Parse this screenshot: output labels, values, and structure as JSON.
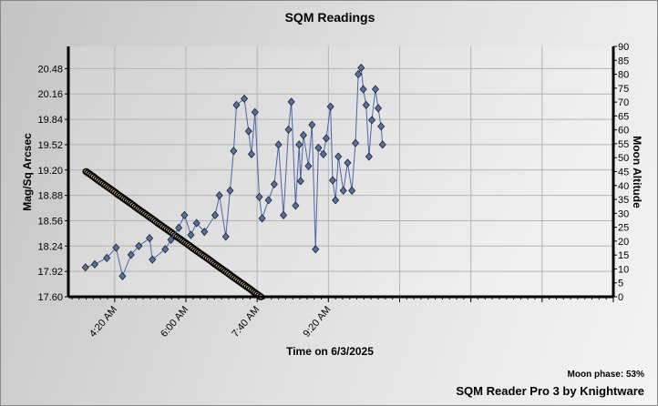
{
  "chart_data": {
    "type": "line",
    "title": "SQM Readings",
    "xlabel": "Time on 6/3/2025",
    "ylabel": "Mag/Sq Arcsec",
    "y2label": "Moon Altitude",
    "xlim": [
      "3:15 AM",
      "4:00 PM"
    ],
    "ylim": [
      17.6,
      20.76
    ],
    "y2lim": [
      0,
      90
    ],
    "x_ticks": [
      "4:20 AM",
      "6:00 AM",
      "7:40 AM",
      "9:20 AM"
    ],
    "x_grid": [
      "4:20",
      "6:00",
      "7:40",
      "9:20",
      "11:00",
      "12:40",
      "14:20",
      "16:00"
    ],
    "y_ticks": [
      "17.60",
      "17.92",
      "18.24",
      "18.56",
      "18.88",
      "19.20",
      "19.52",
      "19.84",
      "20.16",
      "20.48"
    ],
    "y2_ticks": [
      "0",
      "5",
      "10",
      "15",
      "20",
      "25",
      "30",
      "35",
      "40",
      "45",
      "50",
      "55",
      "60",
      "65",
      "70",
      "75",
      "80",
      "85",
      "90"
    ],
    "grid": true,
    "series": [
      {
        "axis": "left",
        "color": "#5a6f99",
        "marker": "diamond",
        "x": [
          "3:39",
          "3:52",
          "4:09",
          "4:22",
          "4:31",
          "4:43",
          "4:54",
          "5:09",
          "5:13",
          "5:31",
          "5:39",
          "5:50",
          "5:58",
          "6:07",
          "6:15",
          "6:26",
          "6:41",
          "6:47",
          "6:56",
          "7:02",
          "7:07",
          "7:11",
          "7:22",
          "7:28",
          "7:32",
          "7:37",
          "7:43",
          "7:47",
          "7:56",
          "8:04",
          "8:10",
          "8:17",
          "8:24",
          "8:28",
          "8:34",
          "8:39",
          "8:41",
          "8:45",
          "8:52",
          "8:57",
          "9:02",
          "9:06",
          "9:13",
          "9:17",
          "9:23",
          "9:26",
          "9:30",
          "9:34",
          "9:41",
          "9:47",
          "9:53",
          "9:58",
          "10:02",
          "10:06",
          "10:09",
          "10:13",
          "10:17",
          "10:21",
          "10:26",
          "10:30",
          "10:34",
          "10:36"
        ],
        "y": [
          17.97,
          18.01,
          18.09,
          18.22,
          17.86,
          18.13,
          18.24,
          18.34,
          18.07,
          18.2,
          18.32,
          18.47,
          18.63,
          18.38,
          18.53,
          18.42,
          18.63,
          18.88,
          18.36,
          18.94,
          19.44,
          20.02,
          20.1,
          19.69,
          19.4,
          19.93,
          18.86,
          18.59,
          18.82,
          19.02,
          19.52,
          18.63,
          19.71,
          20.06,
          18.75,
          19.52,
          19.06,
          19.64,
          19.25,
          19.77,
          18.2,
          19.48,
          19.4,
          19.6,
          20.0,
          19.07,
          18.82,
          19.37,
          18.94,
          19.29,
          18.94,
          19.54,
          20.41,
          20.49,
          20.22,
          20.02,
          19.37,
          19.83,
          20.22,
          19.98,
          19.75,
          19.52
        ]
      },
      {
        "axis": "right",
        "color": "#f5deb3",
        "marker": "circle",
        "x_start": "3:40",
        "x_interval_min": 5,
        "y": [
          45.0,
          44.1,
          43.2,
          42.2,
          41.3,
          40.4,
          39.5,
          38.6,
          37.7,
          36.7,
          35.8,
          34.9,
          34.0,
          33.1,
          32.1,
          31.2,
          30.3,
          29.4,
          28.5,
          27.6,
          26.6,
          25.7,
          24.8,
          23.9,
          23.0,
          22.0,
          21.1,
          20.2,
          19.3,
          18.4,
          17.4,
          16.5,
          15.6,
          14.7,
          13.8,
          12.9,
          11.9,
          11.0,
          10.1,
          9.2,
          8.3,
          7.3,
          6.4,
          5.5,
          4.6,
          3.7,
          2.8,
          1.8,
          0.9,
          0.0
        ]
      }
    ]
  },
  "footer": {
    "moon_phase": "Moon phase: 53%",
    "credit": "SQM Reader Pro 3 by Knightware"
  }
}
